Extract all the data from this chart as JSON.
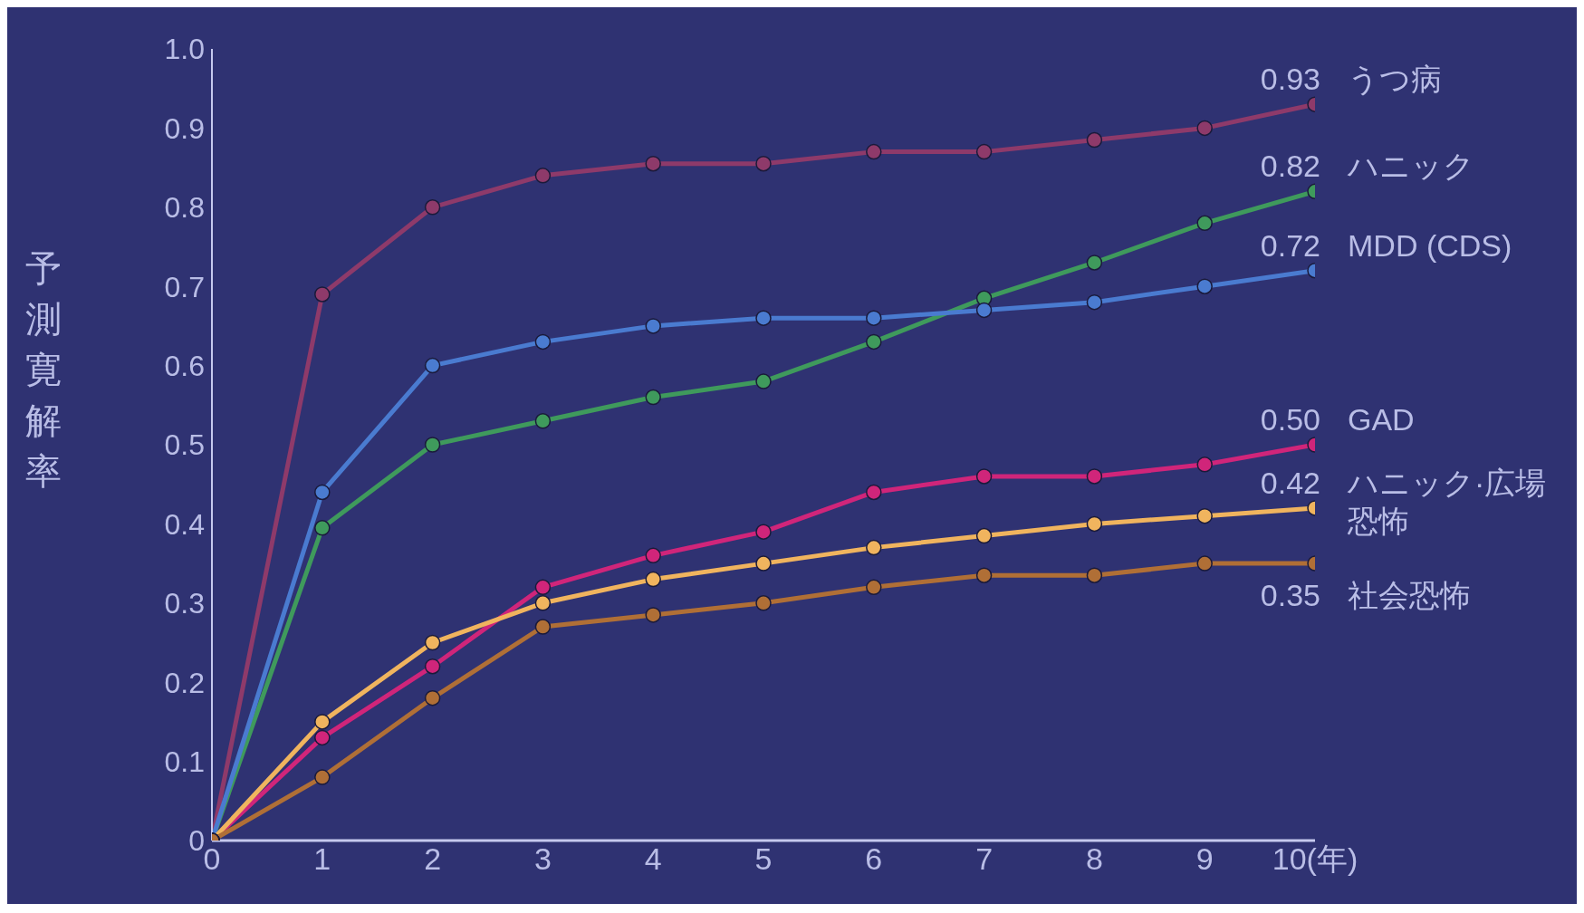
{
  "chart_data": {
    "type": "line",
    "ylabel": "予測寛解率",
    "x": [
      0,
      1,
      2,
      3,
      4,
      5,
      6,
      7,
      8,
      9,
      10
    ],
    "xlim": [
      0,
      10
    ],
    "xticks": [
      0,
      1,
      2,
      3,
      4,
      5,
      6,
      7,
      8,
      9,
      {
        "value": 10,
        "label": "10(年)"
      }
    ],
    "ylim": [
      0,
      1
    ],
    "yticks": [
      0,
      0.1,
      0.2,
      0.3,
      0.4,
      0.5,
      0.6,
      0.7,
      0.8,
      0.9,
      {
        "value": 1,
        "label": "1.0"
      }
    ],
    "grid": false,
    "marker": "circle",
    "line_style": "solid",
    "series": [
      {
        "name": "うつ病",
        "color": "#8e3a6a",
        "values": [
          0,
          0.69,
          0.8,
          0.84,
          0.855,
          0.855,
          0.87,
          0.87,
          0.885,
          0.9,
          0.93
        ],
        "value_labels": [
          null,
          null,
          null,
          null,
          null,
          null,
          null,
          null,
          null,
          null,
          "0.93"
        ]
      },
      {
        "name": "ハニック",
        "color": "#3f9a5c",
        "values": [
          0,
          0.395,
          0.5,
          0.53,
          0.56,
          0.58,
          0.63,
          0.685,
          0.73,
          0.78,
          0.82
        ],
        "value_labels": [
          null,
          null,
          null,
          null,
          null,
          null,
          null,
          null,
          null,
          null,
          "0.82"
        ]
      },
      {
        "name": "MDD (CDS)",
        "color": "#4a7bd0",
        "values": [
          0,
          0.44,
          0.6,
          0.63,
          0.65,
          0.66,
          0.66,
          0.67,
          0.68,
          0.7,
          0.72
        ],
        "value_labels": [
          null,
          null,
          null,
          null,
          null,
          null,
          null,
          null,
          null,
          null,
          "0.72"
        ]
      },
      {
        "name": "GAD",
        "color": "#d0257a",
        "values": [
          0,
          0.13,
          0.22,
          0.32,
          0.36,
          0.39,
          0.44,
          0.46,
          0.46,
          0.475,
          0.5
        ],
        "value_labels": [
          null,
          null,
          null,
          null,
          null,
          null,
          null,
          null,
          null,
          null,
          "0.50"
        ]
      },
      {
        "name": "ハニック·広場恐怖",
        "color": "#f0b45e",
        "values": [
          0,
          0.15,
          0.25,
          0.3,
          0.33,
          0.35,
          0.37,
          0.385,
          0.4,
          0.41,
          0.42
        ],
        "value_labels": [
          null,
          null,
          null,
          null,
          null,
          null,
          null,
          null,
          null,
          null,
          "0.42"
        ]
      },
      {
        "name": "社会恐怖",
        "color": "#b06f36",
        "values": [
          0,
          0.08,
          0.18,
          0.27,
          0.285,
          0.3,
          0.32,
          0.335,
          0.335,
          0.35,
          0.35
        ],
        "value_labels": [
          null,
          null,
          null,
          null,
          null,
          null,
          null,
          null,
          null,
          null,
          "0.35"
        ]
      }
    ]
  }
}
